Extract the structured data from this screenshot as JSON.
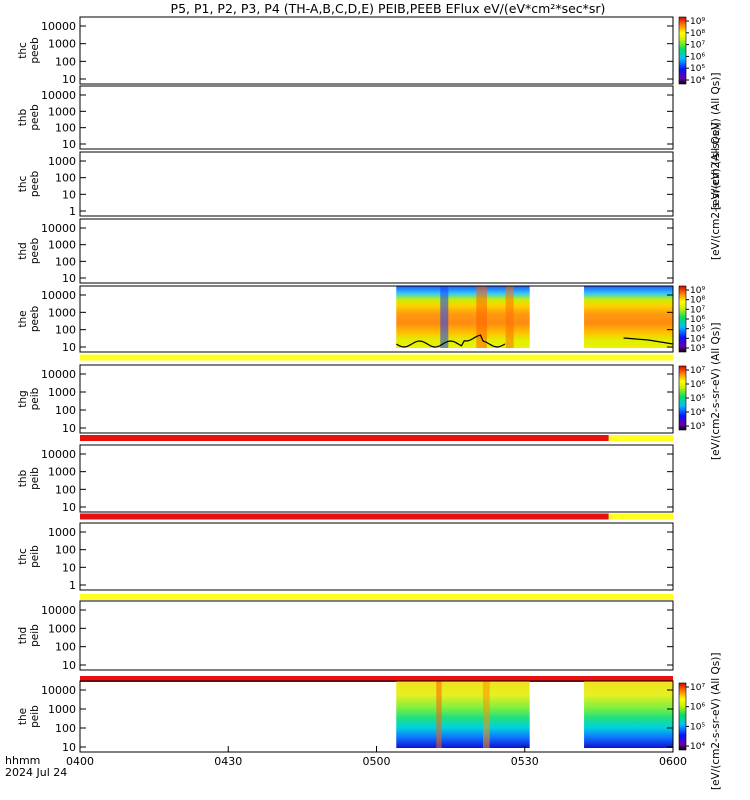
{
  "chart_data": {
    "type": "heatmap",
    "title": "P5, P1, P2, P3, P4 (TH-A,B,C,D,E) PEIB,PEEB EFlux eV/(eV*cm²*sec*sr)",
    "xlabel_line1": "hhmm",
    "xlabel_line2": "2024 Jul 24",
    "x_ticks": [
      "0400",
      "0430",
      "0500",
      "0530",
      "0600"
    ],
    "panels": [
      {
        "ylabel": [
          "thc",
          "peeb"
        ],
        "yticks": [
          "10000",
          "1000",
          "100",
          "10"
        ],
        "bands": []
      },
      {
        "ylabel": [
          "thb",
          "peeb"
        ],
        "yticks": [
          "10000",
          "1000",
          "100",
          "10"
        ],
        "bands": []
      },
      {
        "ylabel": [
          "thc",
          "peeb"
        ],
        "yticks": [
          "1000",
          "100",
          "10",
          "1"
        ],
        "bands": []
      },
      {
        "ylabel": [
          "thd",
          "peeb"
        ],
        "yticks": [
          "10000",
          "1000",
          "100",
          "10"
        ],
        "bands": []
      },
      {
        "ylabel": [
          "the",
          "peeb"
        ],
        "yticks": [
          "10000",
          "1000",
          "100",
          "10"
        ],
        "bands": [
          "yellow"
        ],
        "data_blocks": [
          {
            "start": "0504",
            "end": "0531"
          },
          {
            "start": "0542",
            "end": "0600"
          }
        ]
      },
      {
        "ylabel": [
          "thg",
          "peib"
        ],
        "yticks": [
          "10000",
          "1000",
          "100",
          "10"
        ],
        "bands": [
          "red",
          "yellow"
        ]
      },
      {
        "ylabel": [
          "thb",
          "peib"
        ],
        "yticks": [
          "10000",
          "1000",
          "100",
          "10"
        ],
        "bands": [
          "red",
          "yellow"
        ]
      },
      {
        "ylabel": [
          "thc",
          "peib"
        ],
        "yticks": [
          "1000",
          "100",
          "10",
          "1"
        ],
        "bands": [
          "yellow"
        ]
      },
      {
        "ylabel": [
          "thd",
          "peib"
        ],
        "yticks": [
          "10000",
          "1000",
          "100",
          "10"
        ],
        "bands": [
          "red"
        ]
      },
      {
        "ylabel": [
          "the",
          "peib"
        ],
        "yticks": [
          "10000",
          "1000",
          "100",
          "10"
        ],
        "bands": [],
        "data_blocks": [
          {
            "start": "0504",
            "end": "0531"
          },
          {
            "start": "0542",
            "end": "0600"
          }
        ]
      }
    ],
    "colorbars": [
      {
        "ticks": [
          "10⁹",
          "10⁸",
          "10⁷",
          "10⁶",
          "10⁵",
          "10⁴"
        ],
        "label": "[eV/(cm2-s-sr-eV) (All Qs)]"
      },
      {
        "ticks": [
          "10⁹",
          "10⁸",
          "10⁷",
          "10⁶",
          "10⁵",
          "10⁴",
          "10³"
        ],
        "label": "[eV/(cm2-s-sr-eV) (All Qs)]"
      },
      {
        "ticks": [
          "10⁷",
          "10⁶",
          "10⁵",
          "10⁴",
          "10³"
        ],
        "label": "[eV/(cm2-s-sr-eV) (All Qs)]"
      },
      {
        "ticks": [
          "10⁷",
          "10⁶",
          "10⁵",
          "10⁴"
        ],
        "label": "[eV/(cm2-s-sr-eV) (All Qs)]"
      }
    ],
    "colors": {
      "red": "#e81010",
      "yellow": "#ffff20",
      "line": "#000000"
    }
  }
}
